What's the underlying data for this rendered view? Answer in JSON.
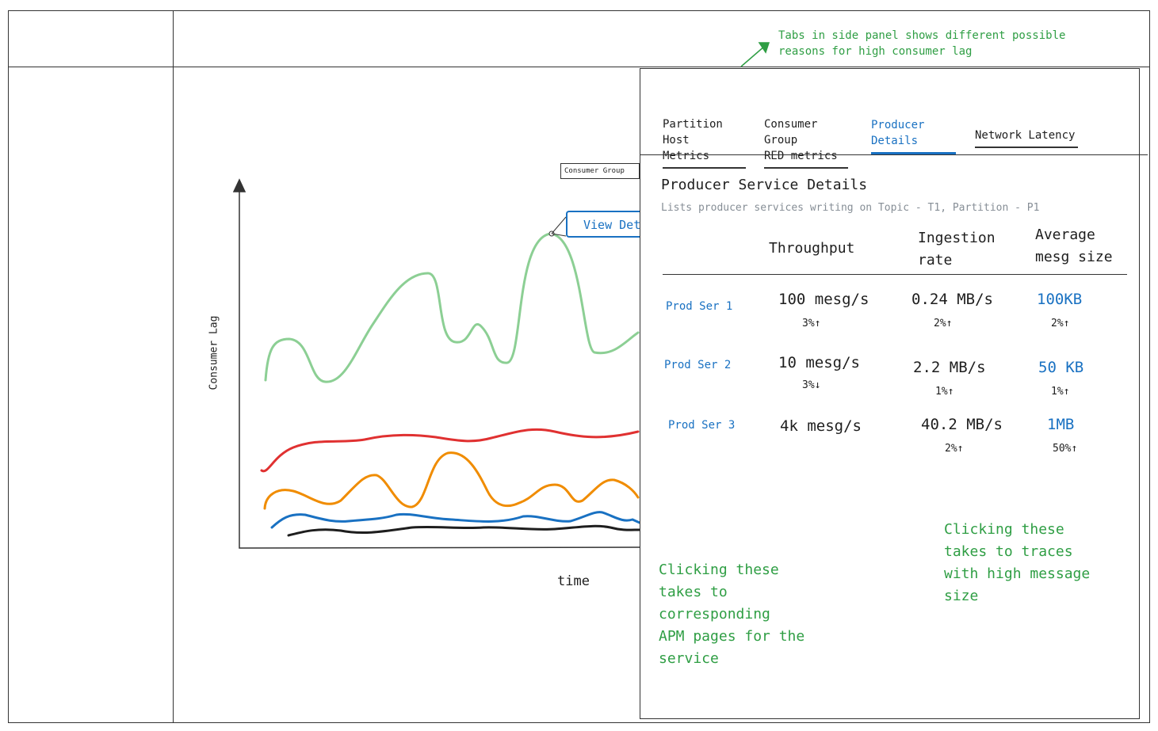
{
  "chart": {
    "ylabel": "Consumer Lag",
    "xlabel": "time",
    "tooltip_title": "Consumer Group",
    "view_details_label": "View Details",
    "line_colors": {
      "green": "#8ccf94",
      "red": "#e03131",
      "orange": "#f08c00",
      "blue": "#1971c2",
      "black": "#1e1e1e"
    }
  },
  "side_panel": {
    "tabs": [
      {
        "line1": "Partition Host",
        "line2": "Metrics",
        "active": false
      },
      {
        "line1": "Consumer Group",
        "line2": "RED metrics",
        "active": false
      },
      {
        "line1": "Producer",
        "line2": "Details",
        "active": true
      },
      {
        "line1": "Network Latency",
        "line2": "",
        "active": false
      }
    ],
    "title": "Producer Service Details",
    "subtitle": "Lists producer services writing on Topic - T1, Partition - P1",
    "columns": {
      "throughput": "Throughput",
      "ingestion_line1": "Ingestion",
      "ingestion_line2": "rate",
      "avg_line1": "Average",
      "avg_line2": "mesg size"
    },
    "rows": [
      {
        "name": "Prod Ser 1",
        "throughput": "100 mesg/s",
        "throughput_change": "3%↑",
        "ingestion": "0.24 MB/s",
        "ingestion_change": "2%↑",
        "avg_size": "100KB",
        "avg_size_change": "2%↑"
      },
      {
        "name": "Prod Ser 2",
        "throughput": "10 mesg/s",
        "throughput_change": "3%↓",
        "ingestion": "2.2 MB/s",
        "ingestion_change": "1%↑",
        "avg_size": "50 KB",
        "avg_size_change": "1%↑"
      },
      {
        "name": "Prod Ser 3",
        "throughput": "4k mesg/s",
        "throughput_change": "",
        "ingestion": "40.2 MB/s",
        "ingestion_change": "2%↑",
        "avg_size": "1MB",
        "avg_size_change": "50%↑"
      }
    ]
  },
  "annotations": {
    "tabs_note_line1": "Tabs in side panel shows different possible",
    "tabs_note_line2": "reasons for high consumer lag",
    "apm_note": [
      "Clicking these",
      "takes to",
      "corresponding",
      "APM pages for the",
      "service"
    ],
    "traces_note": [
      "Clicking these",
      "takes to traces",
      "with high message",
      "size"
    ],
    "accent_green": "#2f9e44"
  }
}
